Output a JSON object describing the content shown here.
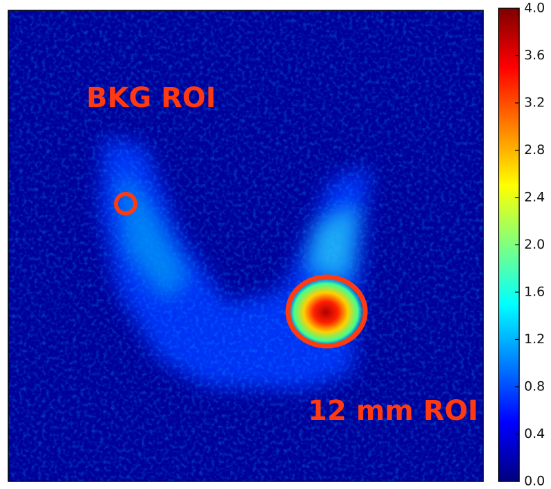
{
  "chart_data": {
    "type": "heatmap",
    "colormap": "jet",
    "annotations": [
      "BKG ROI",
      "12 mm ROI"
    ],
    "colorbar_lim": [
      0,
      4
    ],
    "colorbar_ticks": [
      {
        "value": 0,
        "label": "0.0"
      },
      {
        "value": 0.4,
        "label": "0.4"
      },
      {
        "value": 0.8,
        "label": "0.8"
      },
      {
        "value": 1.2,
        "label": "1.2"
      },
      {
        "value": 1.6,
        "label": "1.6"
      },
      {
        "value": 2,
        "label": "2.0"
      },
      {
        "value": 2.4,
        "label": "2.4"
      },
      {
        "value": 2.8,
        "label": "2.8"
      },
      {
        "value": 3.2,
        "label": "3.2"
      },
      {
        "value": 3.6,
        "label": "3.6"
      },
      {
        "value": 4,
        "label": "4.0"
      }
    ]
  }
}
